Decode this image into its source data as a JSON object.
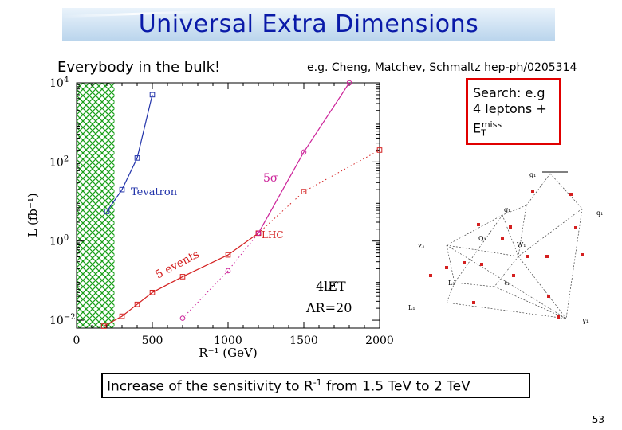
{
  "slide": {
    "title": "Universal Extra Dimensions",
    "subtitle_left": "Everybody in the bulk!",
    "subtitle_right": "e.g. Cheng, Matchev, Schmaltz hep-ph/0205314",
    "search_box": {
      "line1": "Search: e.g",
      "line2": "4 leptons +",
      "et_main": "E",
      "et_sub": "T",
      "et_sup": "miss"
    },
    "bottom_text_before": "Increase of the sensitivity to R",
    "bottom_text_sup": "-1",
    "bottom_text_after": " from 1.5 TeV to 2 TeV",
    "page_number": "53"
  },
  "chart_data": {
    "type": "line",
    "xlabel": "R⁻¹ (GeV)",
    "ylabel": "L (fb⁻¹)",
    "xlim": [
      0,
      2000
    ],
    "ylim_log10": [
      -2.2,
      4.0
    ],
    "x_ticks": [
      "0",
      "500",
      "1000",
      "1500",
      "2000"
    ],
    "y_ticks": [
      {
        "exp": 4,
        "label_base": "10",
        "label_exp": "4"
      },
      {
        "exp": 2,
        "label_base": "10",
        "label_exp": "2"
      },
      {
        "exp": 0,
        "label_base": "10",
        "label_exp": "0"
      },
      {
        "exp": -2,
        "label_base": "10",
        "label_exp": "−2"
      }
    ],
    "excluded_region": [
      0,
      250
    ],
    "annotations": {
      "tevatron": "Tevatron",
      "lhc": "LHC",
      "five_sigma": "5σ",
      "five_events": "5 events",
      "signal": "4lE̸T",
      "delta_r": "ΛR=20"
    },
    "series": [
      {
        "key": "tevatron",
        "color": "#2233aa",
        "line": "solid",
        "marker": "square",
        "x": [
          200,
          300,
          400,
          500
        ],
        "log10L": [
          0.75,
          1.3,
          2.1,
          3.7
        ]
      },
      {
        "key": "lhc_5events",
        "color": "#d42020",
        "line": "solid",
        "marker": "square",
        "x": [
          180,
          300,
          400,
          500,
          700,
          1000,
          1200
        ],
        "log10L": [
          -2.15,
          -1.9,
          -1.6,
          -1.3,
          -0.9,
          -0.35,
          0.2
        ]
      },
      {
        "key": "lhc_5sigma_5events",
        "color": "#d42020",
        "line": "dotted",
        "marker": "square",
        "x": [
          1200,
          1500,
          2000
        ],
        "log10L": [
          0.2,
          1.25,
          2.3
        ]
      },
      {
        "key": "lhc_5sigma",
        "color": "#cc2299",
        "line": "solid",
        "marker": "circle",
        "x": [
          1200,
          1500,
          1800
        ],
        "log10L": [
          0.2,
          2.25,
          4.0
        ]
      },
      {
        "key": "lhc_5sigma_low",
        "color": "#cc2299",
        "line": "dotted",
        "marker": "circle",
        "x": [
          700,
          1000,
          1200
        ],
        "log10L": [
          -1.95,
          -0.75,
          0.2
        ]
      }
    ]
  },
  "diagram": {
    "labels": [
      "g₁",
      "q₁",
      "Q₁",
      "q₁",
      "Z₁",
      "W₁",
      "L₁",
      "ℓ₁",
      "L₁",
      "γ₁"
    ]
  }
}
